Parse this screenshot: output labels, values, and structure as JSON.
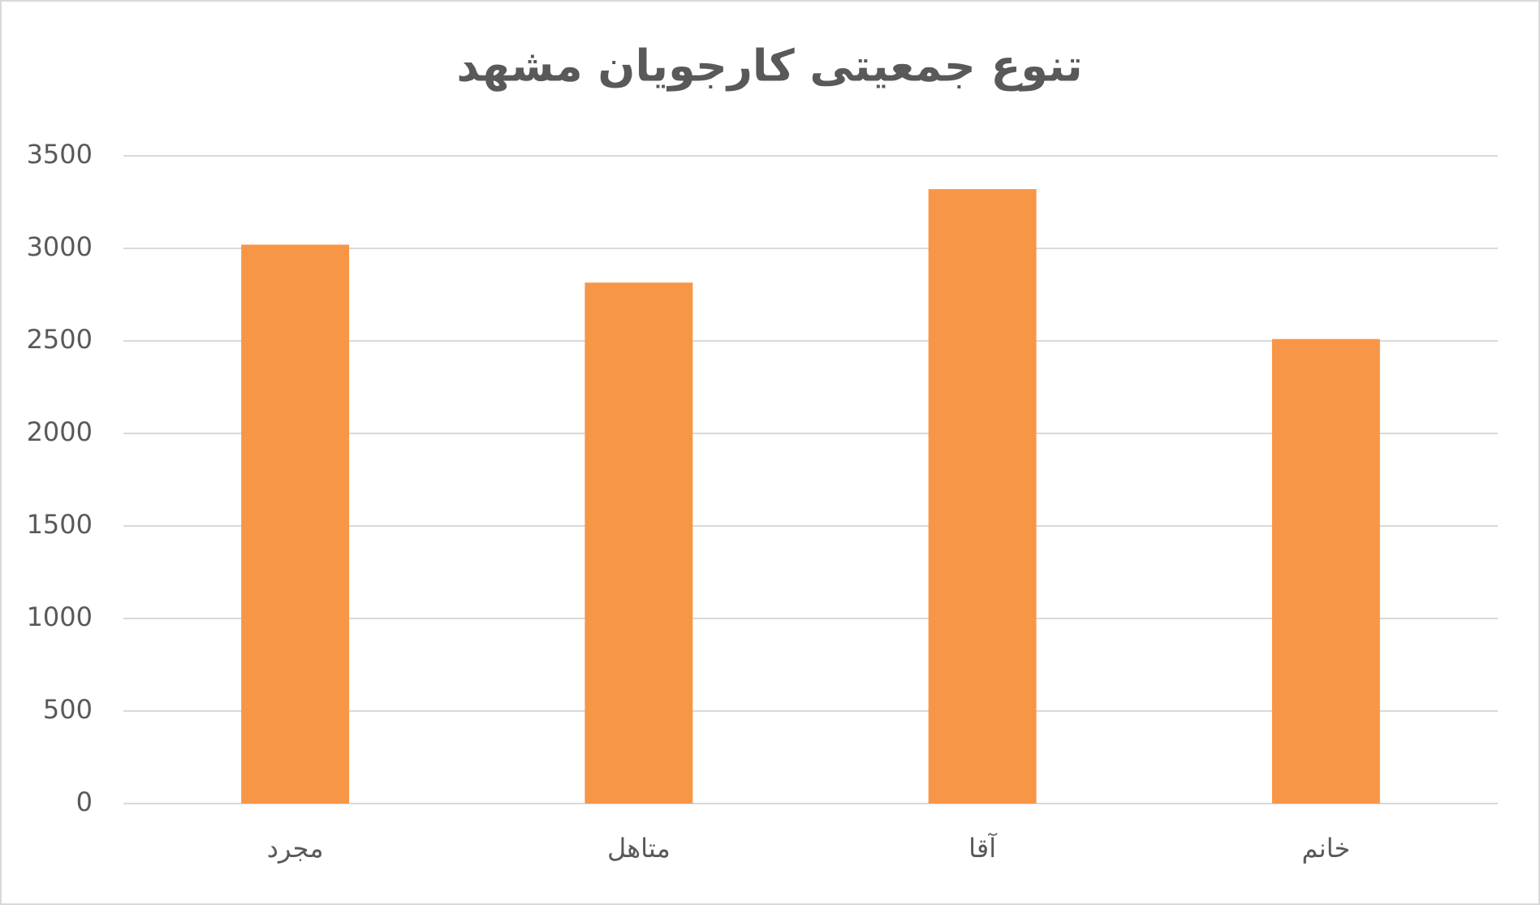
{
  "chart_data": {
    "type": "bar",
    "title": "تنوع جمعیتی کارجویان مشهد",
    "categories": [
      "مجرد",
      "متاهل",
      "آقا",
      "خانم"
    ],
    "values": [
      3020,
      2815,
      3320,
      2510
    ],
    "color": "#f79646",
    "ylim": [
      0,
      3500
    ],
    "yticks": [
      0,
      500,
      1000,
      1500,
      2000,
      2500,
      3000,
      3500
    ],
    "grid": true
  }
}
